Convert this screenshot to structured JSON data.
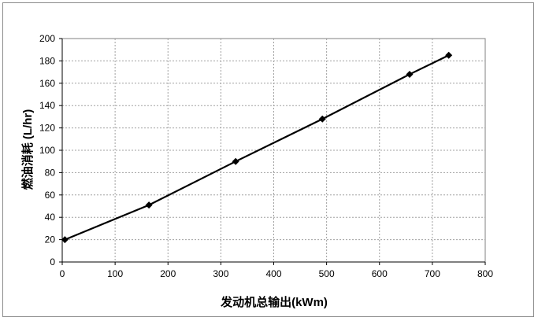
{
  "chart_data": {
    "type": "line",
    "title": "",
    "xlabel": "发动机总输出(kWm)",
    "ylabel": "燃油消耗 (L/hr)",
    "xlim": [
      0,
      800
    ],
    "ylim": [
      0,
      200
    ],
    "x_ticks": [
      "0",
      "100",
      "200",
      "300",
      "400",
      "500",
      "600",
      "700",
      "800"
    ],
    "y_ticks": [
      "0",
      "20",
      "40",
      "60",
      "80",
      "100",
      "120",
      "140",
      "160",
      "180",
      "200"
    ],
    "grid": true,
    "legend": "none",
    "series": [
      {
        "x": [
          5,
          164,
          328,
          492,
          657,
          731
        ],
        "y": [
          20,
          51,
          90,
          128,
          168,
          185
        ],
        "color": "#000000",
        "marker": "diamond"
      }
    ]
  }
}
